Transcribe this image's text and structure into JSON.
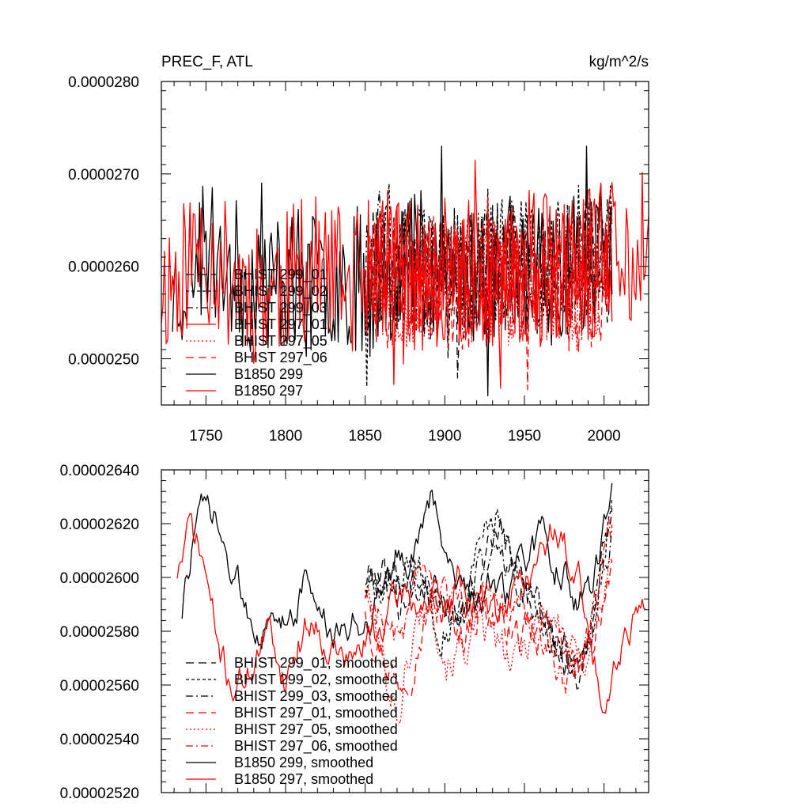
{
  "chart_data": [
    {
      "type": "line",
      "title_left": "PREC_F, ATL",
      "title_right": "kg/m^2/s",
      "xlim": [
        1722,
        2028
      ],
      "ylim": [
        2.45e-05,
        2.8e-05
      ],
      "x_ticks": [
        1750,
        1800,
        1850,
        1900,
        1950,
        2000
      ],
      "x_tick_labels": [
        "1750",
        "1800",
        "1850",
        "1900",
        "1950",
        "2000"
      ],
      "y_ticks": [
        2.5e-05,
        2.6e-05,
        2.7e-05,
        2.8e-05
      ],
      "y_tick_labels": [
        "0.0000250",
        "0.0000260",
        "0.0000270",
        "0.0000280"
      ],
      "legend": [
        {
          "label": "BHIST 299_01",
          "color": "#000000",
          "dash": "long-dash"
        },
        {
          "label": "BHIST 299_02",
          "color": "#000000",
          "dash": "short-dash"
        },
        {
          "label": "BHIST 299_03",
          "color": "#000000",
          "dash": "dash-dot"
        },
        {
          "label": "BHIST 297_01",
          "color": "#ff0000",
          "dash": "solid"
        },
        {
          "label": "BHIST 297_05",
          "color": "#ff0000",
          "dash": "dotted"
        },
        {
          "label": "BHIST 297_06",
          "color": "#ff0000",
          "dash": "long-dash"
        },
        {
          "label": "B1850 299",
          "color": "#000000",
          "dash": "solid"
        },
        {
          "label": "B1850 297",
          "color": "#ff0000",
          "dash": "solid"
        }
      ],
      "series": [
        {
          "name": "B1850 297",
          "color": "#ff0000",
          "dash": "solid",
          "x_start": 1722,
          "x_end": 2028,
          "base": [
            2.58e-05,
            2.59e-05,
            2.62e-05,
            2.61e-05,
            2.59e-05,
            2.58e-05,
            2.57e-05,
            2.58e-05,
            2.59e-05,
            2.6e-05,
            2.59e-05,
            2.58e-05,
            2.59e-05,
            2.6e-05,
            2.61e-05,
            2.59e-05,
            2.58e-05,
            2.59e-05,
            2.6e-05,
            2.6e-05,
            2.59e-05,
            2.6e-05,
            2.61e-05,
            2.6e-05,
            2.59e-05,
            2.6e-05,
            2.61e-05,
            2.62e-05,
            2.6e-05,
            2.58e-05
          ],
          "amp": 8e-07,
          "min": 2.46e-05,
          "max": 2.75e-05,
          "seed": 11
        },
        {
          "name": "B1850 299",
          "color": "#000000",
          "dash": "solid",
          "x_start": 1729,
          "x_end": 2005,
          "base": [
            2.57e-05,
            2.6e-05,
            2.62e-05,
            2.61e-05,
            2.59e-05,
            2.58e-05,
            2.58e-05,
            2.59e-05,
            2.58e-05,
            2.58e-05,
            2.59e-05,
            2.59e-05,
            2.58e-05,
            2.59e-05,
            2.61e-05,
            2.62e-05,
            2.61e-05,
            2.6e-05,
            2.59e-05,
            2.59e-05,
            2.59e-05,
            2.6e-05,
            2.6e-05,
            2.59e-05,
            2.6e-05,
            2.61e-05,
            2.61e-05,
            2.62e-05
          ],
          "amp": 8e-07,
          "min": 2.46e-05,
          "max": 2.73e-05,
          "seed": 23
        },
        {
          "name": "BHIST 299_01",
          "color": "#000000",
          "dash": "long-dash",
          "x_start": 1850,
          "x_end": 2005,
          "base": [
            2.6e-05,
            2.59e-05,
            2.61e-05,
            2.6e-05,
            2.59e-05,
            2.6e-05,
            2.59e-05,
            2.6e-05,
            2.61e-05,
            2.6e-05,
            2.59e-05,
            2.6e-05,
            2.62e-05,
            2.61e-05,
            2.6e-05,
            2.61e-05
          ],
          "amp": 7e-07,
          "min": 2.47e-05,
          "max": 2.73e-05,
          "seed": 31
        },
        {
          "name": "BHIST 299_02",
          "color": "#000000",
          "dash": "short-dash",
          "x_start": 1850,
          "x_end": 2005,
          "base": [
            2.6e-05,
            2.6e-05,
            2.59e-05,
            2.6e-05,
            2.6e-05,
            2.59e-05,
            2.6e-05,
            2.6e-05,
            2.61e-05,
            2.61e-05,
            2.6e-05,
            2.59e-05,
            2.61e-05,
            2.62e-05,
            2.61e-05,
            2.62e-05
          ],
          "amp": 7e-07,
          "min": 2.47e-05,
          "max": 2.73e-05,
          "seed": 37
        },
        {
          "name": "BHIST 299_03",
          "color": "#000000",
          "dash": "dash-dot",
          "x_start": 1850,
          "x_end": 2005,
          "base": [
            2.59e-05,
            2.6e-05,
            2.6e-05,
            2.59e-05,
            2.59e-05,
            2.6e-05,
            2.59e-05,
            2.59e-05,
            2.6e-05,
            2.61e-05,
            2.61e-05,
            2.6e-05,
            2.6e-05,
            2.61e-05,
            2.62e-05,
            2.62e-05
          ],
          "amp": 7e-07,
          "min": 2.47e-05,
          "max": 2.73e-05,
          "seed": 41
        },
        {
          "name": "BHIST 297_01",
          "color": "#ff0000",
          "dash": "solid",
          "x_start": 1850,
          "x_end": 2005,
          "base": [
            2.6e-05,
            2.59e-05,
            2.6e-05,
            2.59e-05,
            2.58e-05,
            2.58e-05,
            2.59e-05,
            2.58e-05,
            2.59e-05,
            2.59e-05,
            2.58e-05,
            2.58e-05,
            2.59e-05,
            2.58e-05,
            2.59e-05,
            2.61e-05
          ],
          "amp": 7e-07,
          "min": 2.46e-05,
          "max": 2.75e-05,
          "seed": 47
        },
        {
          "name": "BHIST 297_05",
          "color": "#ff0000",
          "dash": "dotted",
          "x_start": 1850,
          "x_end": 2005,
          "base": [
            2.61e-05,
            2.59e-05,
            2.58e-05,
            2.57e-05,
            2.58e-05,
            2.59e-05,
            2.58e-05,
            2.59e-05,
            2.58e-05,
            2.58e-05,
            2.58e-05,
            2.58e-05,
            2.59e-05,
            2.57e-05,
            2.59e-05,
            2.6e-05
          ],
          "amp": 7e-07,
          "min": 2.46e-05,
          "max": 2.75e-05,
          "seed": 53
        },
        {
          "name": "BHIST 297_06",
          "color": "#ff0000",
          "dash": "long-dash",
          "x_start": 1850,
          "x_end": 2005,
          "base": [
            2.6e-05,
            2.58e-05,
            2.58e-05,
            2.58e-05,
            2.59e-05,
            2.58e-05,
            2.58e-05,
            2.58e-05,
            2.59e-05,
            2.58e-05,
            2.58e-05,
            2.58e-05,
            2.58e-05,
            2.57e-05,
            2.58e-05,
            2.6e-05
          ],
          "amp": 7e-07,
          "min": 2.46e-05,
          "max": 2.75e-05,
          "seed": 59
        }
      ]
    },
    {
      "type": "line",
      "xlim": [
        1722,
        2028
      ],
      "ylim": [
        2.52e-05,
        2.64e-05
      ],
      "x_ticks": [
        1750,
        1800,
        1850,
        1900,
        1950,
        2000
      ],
      "y_ticks": [
        2.52e-05,
        2.54e-05,
        2.56e-05,
        2.58e-05,
        2.6e-05,
        2.62e-05,
        2.64e-05
      ],
      "y_tick_labels": [
        "0.00002520",
        "0.00002540",
        "0.00002560",
        "0.00002580",
        "0.00002600",
        "0.00002620",
        "0.00002640"
      ],
      "legend": [
        {
          "label": "BHIST 299_01, smoothed",
          "color": "#000000",
          "dash": "long-dash"
        },
        {
          "label": "BHIST 299_02, smoothed",
          "color": "#000000",
          "dash": "short-dash"
        },
        {
          "label": "BHIST 299_03, smoothed",
          "color": "#000000",
          "dash": "dash-dot"
        },
        {
          "label": "BHIST 297_01, smoothed",
          "color": "#ff0000",
          "dash": "long-dash"
        },
        {
          "label": "BHIST 297_05, smoothed",
          "color": "#ff0000",
          "dash": "dotted"
        },
        {
          "label": "BHIST 297_06, smoothed",
          "color": "#ff0000",
          "dash": "dash-dot"
        },
        {
          "label": "B1850 299, smoothed",
          "color": "#000000",
          "dash": "solid"
        },
        {
          "label": "B1850 297, smoothed",
          "color": "#ff0000",
          "dash": "solid"
        }
      ],
      "series": [
        {
          "name": "B1850 297, smoothed",
          "color": "#ff0000",
          "dash": "solid",
          "x_start": 1732,
          "x_end": 2026,
          "base": [
            2.602e-05,
            2.619e-05,
            2.605e-05,
            2.575e-05,
            2.56e-05,
            2.562e-05,
            2.572e-05,
            2.58e-05,
            2.563e-05,
            2.575e-05,
            2.585e-05,
            2.578e-05,
            2.572e-05,
            2.568e-05,
            2.575e-05,
            2.58e-05,
            2.588e-05,
            2.595e-05,
            2.59e-05,
            2.592e-05,
            2.585e-05,
            2.6e-05,
            2.592e-05,
            2.59e-05,
            2.585e-05,
            2.595e-05,
            2.6e-05,
            2.605e-05,
            2.618e-05,
            2.61e-05,
            2.6e-05,
            2.57e-05,
            2.555e-05,
            2.575e-05,
            2.585e-05,
            2.594e-05
          ],
          "amp": 5e-08,
          "min": 2.52e-05,
          "max": 2.64e-05,
          "seed": 71
        },
        {
          "name": "B1850 299, smoothed",
          "color": "#000000",
          "dash": "solid",
          "x_start": 1735,
          "x_end": 2005,
          "base": [
            2.587e-05,
            2.615e-05,
            2.625e-05,
            2.62e-05,
            2.605e-05,
            2.595e-05,
            2.588e-05,
            2.582e-05,
            2.58e-05,
            2.585e-05,
            2.59e-05,
            2.6e-05,
            2.59e-05,
            2.58e-05,
            2.575e-05,
            2.585e-05,
            2.583e-05,
            2.59e-05,
            2.6e-05,
            2.61e-05,
            2.605e-05,
            2.615e-05,
            2.628e-05,
            2.615e-05,
            2.605e-05,
            2.6e-05,
            2.59e-05,
            2.595e-05,
            2.59e-05,
            2.595e-05,
            2.605e-05,
            2.61e-05,
            2.615e-05,
            2.605e-05,
            2.6e-05,
            2.59e-05,
            2.595e-05,
            2.612e-05,
            2.628e-05
          ],
          "amp": 5e-08,
          "min": 2.52e-05,
          "max": 2.64e-05,
          "seed": 73
        },
        {
          "name": "BHIST 299_01, smoothed",
          "color": "#000000",
          "dash": "long-dash",
          "x_start": 1850,
          "x_end": 2005,
          "base": [
            2.6e-05,
            2.605e-05,
            2.59e-05,
            2.6e-05,
            2.598e-05,
            2.592e-05,
            2.59e-05,
            2.6e-05,
            2.62e-05,
            2.605e-05,
            2.595e-05,
            2.585e-05,
            2.57e-05,
            2.565e-05,
            2.59e-05,
            2.63e-05
          ],
          "amp": 6e-08,
          "min": 2.52e-05,
          "max": 2.64e-05,
          "seed": 79
        },
        {
          "name": "BHIST 299_02, smoothed",
          "color": "#000000",
          "dash": "short-dash",
          "x_start": 1850,
          "x_end": 2005,
          "base": [
            2.595e-05,
            2.59e-05,
            2.6e-05,
            2.605e-05,
            2.59e-05,
            2.585e-05,
            2.59e-05,
            2.61e-05,
            2.625e-05,
            2.6e-05,
            2.59e-05,
            2.58e-05,
            2.575e-05,
            2.56e-05,
            2.585e-05,
            2.635e-05
          ],
          "amp": 6e-08,
          "min": 2.52e-05,
          "max": 2.64e-05,
          "seed": 83
        },
        {
          "name": "BHIST 299_03, smoothed",
          "color": "#000000",
          "dash": "dash-dot",
          "x_start": 1850,
          "x_end": 2005,
          "base": [
            2.598e-05,
            2.595e-05,
            2.6e-05,
            2.595e-05,
            2.595e-05,
            2.59e-05,
            2.588e-05,
            2.605e-05,
            2.61e-05,
            2.6e-05,
            2.59e-05,
            2.585e-05,
            2.575e-05,
            2.57e-05,
            2.59e-05,
            2.62e-05
          ],
          "amp": 6e-08,
          "min": 2.52e-05,
          "max": 2.64e-05,
          "seed": 89
        },
        {
          "name": "BHIST 297_01, smoothed",
          "color": "#ff0000",
          "dash": "long-dash",
          "x_start": 1850,
          "x_end": 2005,
          "base": [
            2.59e-05,
            2.575e-05,
            2.56e-05,
            2.575e-05,
            2.59e-05,
            2.585e-05,
            2.58e-05,
            2.59e-05,
            2.585e-05,
            2.58e-05,
            2.575e-05,
            2.58e-05,
            2.575e-05,
            2.56e-05,
            2.58e-05,
            2.61e-05
          ],
          "amp": 6e-08,
          "min": 2.52e-05,
          "max": 2.64e-05,
          "seed": 97
        },
        {
          "name": "BHIST 297_05, smoothed",
          "color": "#ff0000",
          "dash": "dotted",
          "x_start": 1850,
          "x_end": 2005,
          "base": [
            2.598e-05,
            2.57e-05,
            2.55e-05,
            2.58e-05,
            2.595e-05,
            2.57e-05,
            2.575e-05,
            2.58e-05,
            2.575e-05,
            2.565e-05,
            2.58e-05,
            2.59e-05,
            2.58e-05,
            2.565e-05,
            2.585e-05,
            2.605e-05
          ],
          "amp": 6e-08,
          "min": 2.52e-05,
          "max": 2.64e-05,
          "seed": 101
        },
        {
          "name": "BHIST 297_06, smoothed",
          "color": "#ff0000",
          "dash": "dash-dot",
          "x_start": 1850,
          "x_end": 2005,
          "base": [
            2.595e-05,
            2.585e-05,
            2.575e-05,
            2.59e-05,
            2.595e-05,
            2.585e-05,
            2.585e-05,
            2.59e-05,
            2.595e-05,
            2.585e-05,
            2.585e-05,
            2.575e-05,
            2.565e-05,
            2.57e-05,
            2.59e-05,
            2.615e-05
          ],
          "amp": 6e-08,
          "min": 2.52e-05,
          "max": 2.64e-05,
          "seed": 103
        }
      ]
    }
  ]
}
